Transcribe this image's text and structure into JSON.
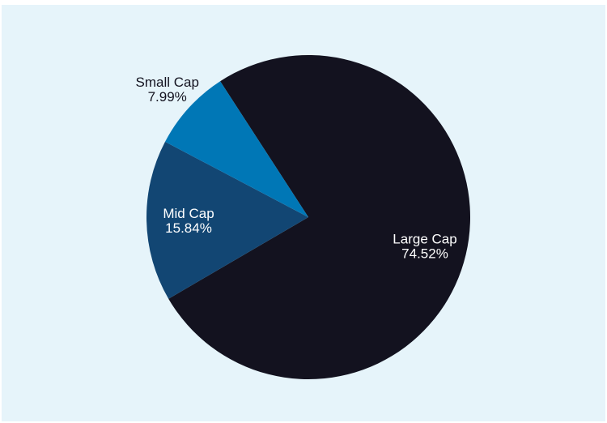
{
  "chart_data": {
    "type": "pie",
    "slices": [
      {
        "name": "Large Cap",
        "value": 74.52,
        "label": "74.52%",
        "color": "#13121f",
        "label_color": "#ffffff",
        "label_placement": "inside"
      },
      {
        "name": "Mid Cap",
        "value": 15.84,
        "label": "15.84%",
        "color": "#124673",
        "label_color": "#ffffff",
        "label_placement": "inside"
      },
      {
        "name": "Small Cap",
        "value": 7.99,
        "label": "7.99%",
        "color": "#0077b6",
        "label_color": "#13121f",
        "label_placement": "outside"
      }
    ],
    "start_angle_deg": -123,
    "direction": "clockwise",
    "legend": "none",
    "background_color": "#e6f4fa"
  }
}
